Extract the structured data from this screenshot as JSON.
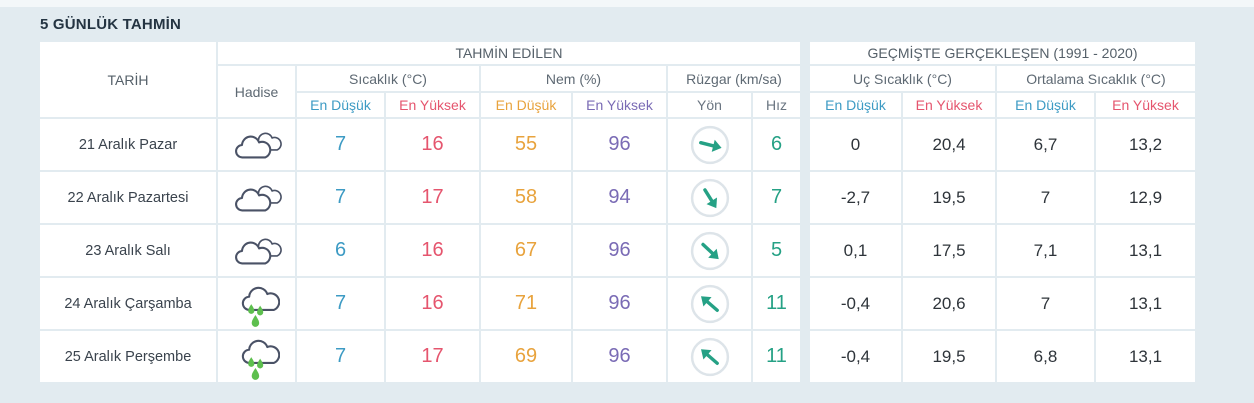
{
  "title": "5 GÜNLÜK TAHMİN",
  "colors": {
    "low_blue": "#3d9bc4",
    "high_red": "#e5556e",
    "humidity_low_orange": "#e8a33d",
    "humidity_high_purple": "#7a6bb5",
    "wind_teal": "#25a185",
    "rain_green": "#5dbf4e",
    "icon_stroke": "#4a5266",
    "dir_circle": "#dde4e9"
  },
  "table": {
    "header": {
      "date": "TARİH",
      "condition": "Hadise",
      "predicted_group": "TAHMİN EDİLEN",
      "past_group": "GEÇMİŞTE GERÇEKLEŞEN (1991 - 2020)",
      "temperature": "Sıcaklık (°C)",
      "humidity": "Nem (%)",
      "wind": "Rüzgar (km/sa)",
      "extreme_temp": "Uç Sıcaklık (°C)",
      "average_temp": "Ortalama Sıcaklık (°C)",
      "lowest": "En Düşük",
      "highest": "En Yüksek",
      "direction": "Yön",
      "speed": "Hız"
    },
    "rows": [
      {
        "date": "21 Aralık Pazar",
        "condition_icon": "cloudy",
        "temp_low": "7",
        "temp_high": "16",
        "hum_low": "55",
        "hum_high": "96",
        "wind_dir_deg": 14,
        "wind_speed": "6",
        "ext_low": "0",
        "ext_high": "20,4",
        "avg_low": "6,7",
        "avg_high": "13,2"
      },
      {
        "date": "22 Aralık Pazartesi",
        "condition_icon": "cloudy",
        "temp_low": "7",
        "temp_high": "17",
        "hum_low": "58",
        "hum_high": "94",
        "wind_dir_deg": 58,
        "wind_speed": "7",
        "ext_low": "-2,7",
        "ext_high": "19,5",
        "avg_low": "7",
        "avg_high": "12,9"
      },
      {
        "date": "23 Aralık Salı",
        "condition_icon": "cloudy",
        "temp_low": "6",
        "temp_high": "16",
        "hum_low": "67",
        "hum_high": "96",
        "wind_dir_deg": 43,
        "wind_speed": "5",
        "ext_low": "0,1",
        "ext_high": "17,5",
        "avg_low": "7,1",
        "avg_high": "13,1"
      },
      {
        "date": "24 Aralık Çarşamba",
        "condition_icon": "rainy",
        "temp_low": "7",
        "temp_high": "16",
        "hum_low": "71",
        "hum_high": "96",
        "wind_dir_deg": 221,
        "wind_speed": "11",
        "ext_low": "-0,4",
        "ext_high": "20,6",
        "avg_low": "7",
        "avg_high": "13,1"
      },
      {
        "date": "25 Aralık Perşembe",
        "condition_icon": "rainy",
        "temp_low": "7",
        "temp_high": "17",
        "hum_low": "69",
        "hum_high": "96",
        "wind_dir_deg": 221,
        "wind_speed": "11",
        "ext_low": "-0,4",
        "ext_high": "19,5",
        "avg_low": "6,8",
        "avg_high": "13,1"
      }
    ]
  }
}
